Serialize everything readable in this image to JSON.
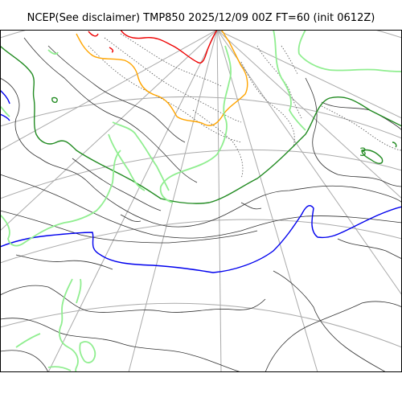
{
  "header": {
    "title": "NCEP(See disclaimer) TMP850 2025/12/09 00Z FT=60 (init 0612Z)"
  },
  "map": {
    "projection": "polar-stereographic",
    "gridline_color": "#aaaaaa",
    "land_outline_color": "#90ee90",
    "frame_color": "#000000",
    "contour_colors": {
      "solid_thin": "#333333",
      "dotted": "#555555",
      "green": "#228b22",
      "blue": "#0000ee",
      "orange": "#ffa500",
      "red": "#ee0000"
    },
    "annotation_glyph": "3"
  }
}
